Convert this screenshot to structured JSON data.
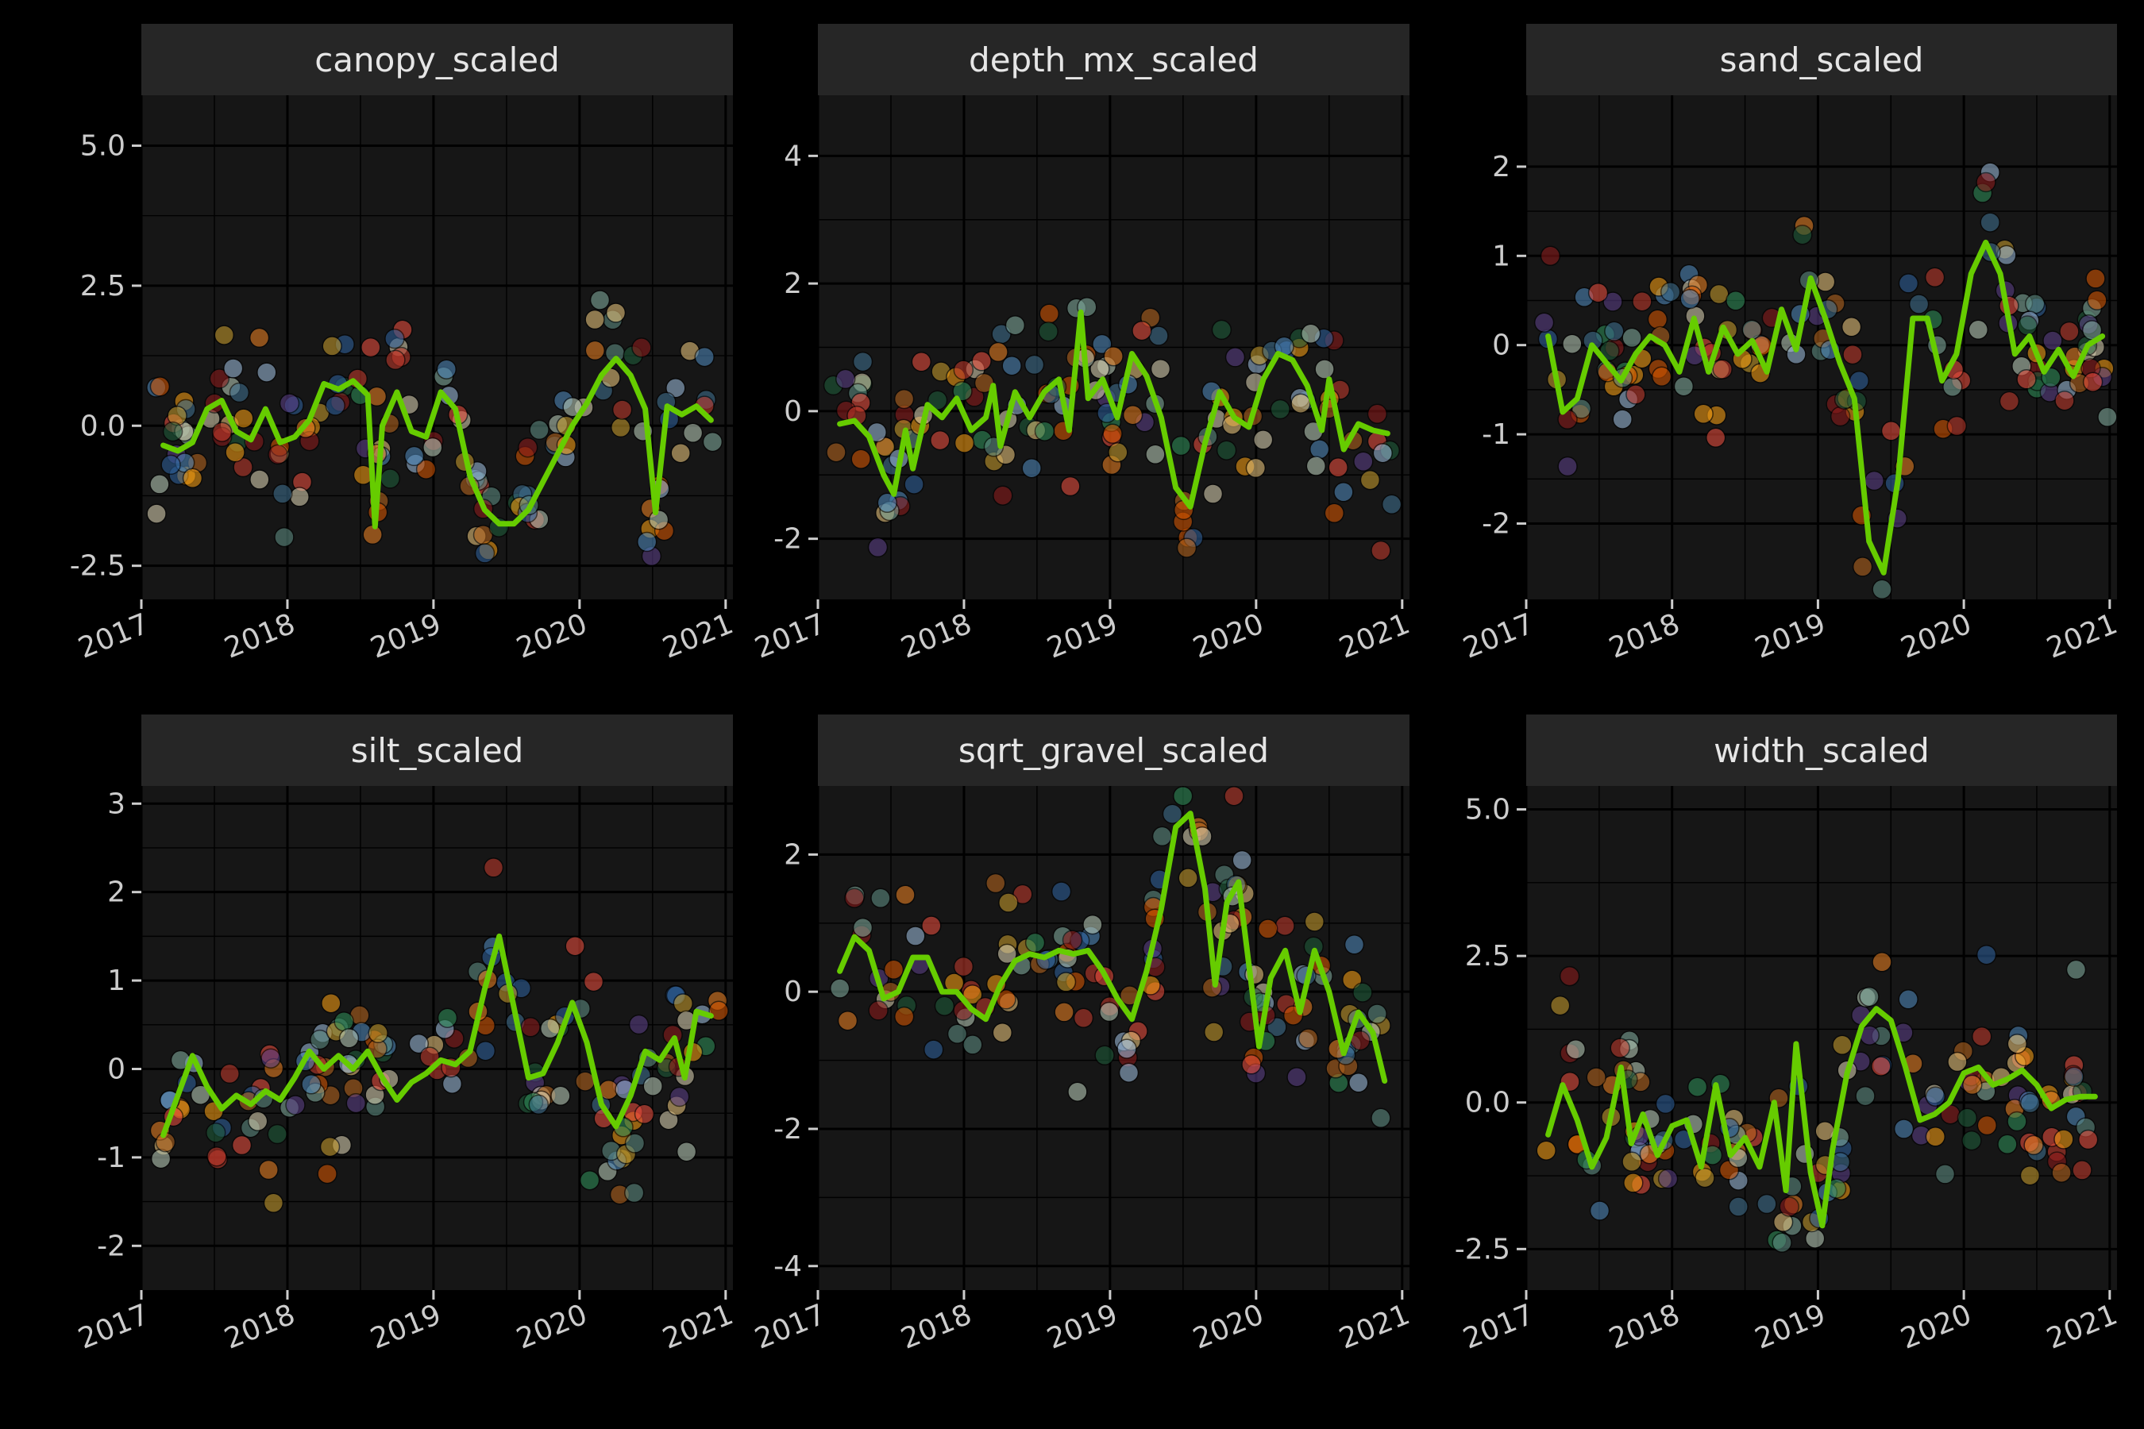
{
  "colors": {
    "background": "#000000",
    "panel": "#161616",
    "strip": "#262626",
    "smooth": "#66cc00",
    "palette": [
      "#8b1a1a",
      "#c0392b",
      "#e74c3c",
      "#d35400",
      "#e67e22",
      "#f39c12",
      "#c49a2c",
      "#e6c27a",
      "#d8cfb0",
      "#b7c9b7",
      "#7fa99b",
      "#5e8c82",
      "#2e8b57",
      "#1e5b3a",
      "#3e6e8e",
      "#4d86b8",
      "#2d5f9a",
      "#9ab8d8",
      "#b5651d",
      "#5a3e85"
    ]
  },
  "chart_data": [
    {
      "type": "scatter",
      "title": "canopy_scaled",
      "x_ticks": [
        "2017",
        "2018",
        "2019",
        "2020",
        "2021"
      ],
      "y_ticks": [
        "-2.5",
        "0.0",
        "2.5",
        "5.0"
      ],
      "xlim": [
        2017.0,
        2021.05
      ],
      "ylim": [
        -3.1,
        5.9
      ],
      "grid": true,
      "smooth": [
        [
          2017.15,
          -0.35
        ],
        [
          2017.25,
          -0.45
        ],
        [
          2017.35,
          -0.3
        ],
        [
          2017.45,
          0.3
        ],
        [
          2017.55,
          0.45
        ],
        [
          2017.65,
          -0.1
        ],
        [
          2017.75,
          -0.25
        ],
        [
          2017.85,
          0.3
        ],
        [
          2017.95,
          -0.3
        ],
        [
          2018.05,
          -0.2
        ],
        [
          2018.15,
          0.1
        ],
        [
          2018.25,
          0.75
        ],
        [
          2018.35,
          0.65
        ],
        [
          2018.45,
          0.8
        ],
        [
          2018.55,
          0.55
        ],
        [
          2018.6,
          -1.8
        ],
        [
          2018.65,
          0.0
        ],
        [
          2018.75,
          0.6
        ],
        [
          2018.85,
          -0.1
        ],
        [
          2018.95,
          -0.2
        ],
        [
          2019.05,
          0.6
        ],
        [
          2019.15,
          0.3
        ],
        [
          2019.25,
          -0.9
        ],
        [
          2019.35,
          -1.5
        ],
        [
          2019.45,
          -1.75
        ],
        [
          2019.55,
          -1.75
        ],
        [
          2019.65,
          -1.5
        ],
        [
          2019.75,
          -1.0
        ],
        [
          2019.85,
          -0.5
        ],
        [
          2019.95,
          0.0
        ],
        [
          2020.05,
          0.4
        ],
        [
          2020.15,
          0.9
        ],
        [
          2020.25,
          1.2
        ],
        [
          2020.35,
          0.9
        ],
        [
          2020.45,
          0.3
        ],
        [
          2020.52,
          -1.55
        ],
        [
          2020.6,
          0.35
        ],
        [
          2020.7,
          0.2
        ],
        [
          2020.8,
          0.35
        ],
        [
          2020.9,
          0.1
        ]
      ]
    },
    {
      "type": "scatter",
      "title": "depth_mx_scaled",
      "x_ticks": [
        "2017",
        "2018",
        "2019",
        "2020",
        "2021"
      ],
      "y_ticks": [
        "-2",
        "0",
        "2",
        "4"
      ],
      "xlim": [
        2017.0,
        2021.05
      ],
      "ylim": [
        -2.95,
        4.95
      ],
      "grid": true,
      "smooth": [
        [
          2017.15,
          -0.2
        ],
        [
          2017.25,
          -0.15
        ],
        [
          2017.35,
          -0.4
        ],
        [
          2017.45,
          -1.0
        ],
        [
          2017.52,
          -1.3
        ],
        [
          2017.6,
          -0.3
        ],
        [
          2017.65,
          -0.9
        ],
        [
          2017.75,
          0.1
        ],
        [
          2017.85,
          -0.1
        ],
        [
          2017.95,
          0.2
        ],
        [
          2018.05,
          -0.3
        ],
        [
          2018.15,
          -0.1
        ],
        [
          2018.2,
          0.4
        ],
        [
          2018.25,
          -0.55
        ],
        [
          2018.35,
          0.3
        ],
        [
          2018.45,
          -0.1
        ],
        [
          2018.55,
          0.3
        ],
        [
          2018.65,
          0.5
        ],
        [
          2018.72,
          -0.3
        ],
        [
          2018.8,
          1.55
        ],
        [
          2018.85,
          0.2
        ],
        [
          2018.95,
          0.5
        ],
        [
          2019.05,
          -0.1
        ],
        [
          2019.15,
          0.9
        ],
        [
          2019.25,
          0.55
        ],
        [
          2019.35,
          -0.1
        ],
        [
          2019.45,
          -1.2
        ],
        [
          2019.55,
          -1.5
        ],
        [
          2019.65,
          -0.5
        ],
        [
          2019.75,
          0.3
        ],
        [
          2019.85,
          -0.1
        ],
        [
          2019.95,
          -0.25
        ],
        [
          2020.05,
          0.5
        ],
        [
          2020.15,
          0.9
        ],
        [
          2020.25,
          0.8
        ],
        [
          2020.35,
          0.4
        ],
        [
          2020.45,
          -0.3
        ],
        [
          2020.5,
          0.5
        ],
        [
          2020.6,
          -0.6
        ],
        [
          2020.7,
          -0.2
        ],
        [
          2020.8,
          -0.3
        ],
        [
          2020.9,
          -0.35
        ]
      ]
    },
    {
      "type": "scatter",
      "title": "sand_scaled",
      "x_ticks": [
        "2017",
        "2018",
        "2019",
        "2020",
        "2021"
      ],
      "y_ticks": [
        "-2",
        "-1",
        "0",
        "1",
        "2"
      ],
      "xlim": [
        2017.0,
        2021.05
      ],
      "ylim": [
        -2.85,
        2.8
      ],
      "grid": true,
      "smooth": [
        [
          2017.15,
          0.1
        ],
        [
          2017.25,
          -0.75
        ],
        [
          2017.35,
          -0.6
        ],
        [
          2017.45,
          0.0
        ],
        [
          2017.55,
          -0.2
        ],
        [
          2017.65,
          -0.4
        ],
        [
          2017.75,
          -0.1
        ],
        [
          2017.85,
          0.1
        ],
        [
          2017.95,
          0.0
        ],
        [
          2018.05,
          -0.3
        ],
        [
          2018.15,
          0.3
        ],
        [
          2018.25,
          -0.3
        ],
        [
          2018.35,
          0.2
        ],
        [
          2018.45,
          -0.1
        ],
        [
          2018.55,
          0.05
        ],
        [
          2018.65,
          -0.3
        ],
        [
          2018.75,
          0.4
        ],
        [
          2018.85,
          -0.05
        ],
        [
          2018.95,
          0.75
        ],
        [
          2019.05,
          0.3
        ],
        [
          2019.15,
          -0.2
        ],
        [
          2019.25,
          -0.6
        ],
        [
          2019.35,
          -2.2
        ],
        [
          2019.45,
          -2.55
        ],
        [
          2019.55,
          -1.5
        ],
        [
          2019.65,
          0.3
        ],
        [
          2019.75,
          0.3
        ],
        [
          2019.85,
          -0.4
        ],
        [
          2019.95,
          -0.1
        ],
        [
          2020.05,
          0.8
        ],
        [
          2020.15,
          1.15
        ],
        [
          2020.25,
          0.8
        ],
        [
          2020.35,
          -0.1
        ],
        [
          2020.45,
          0.1
        ],
        [
          2020.55,
          -0.3
        ],
        [
          2020.65,
          -0.05
        ],
        [
          2020.75,
          -0.35
        ],
        [
          2020.85,
          0.0
        ],
        [
          2020.95,
          0.1
        ]
      ]
    },
    {
      "type": "scatter",
      "title": "silt_scaled",
      "x_ticks": [
        "2017",
        "2018",
        "2019",
        "2020",
        "2021"
      ],
      "y_ticks": [
        "-2",
        "-1",
        "0",
        "1",
        "2",
        "3"
      ],
      "xlim": [
        2017.0,
        2021.05
      ],
      "ylim": [
        -2.5,
        3.2
      ],
      "grid": true,
      "smooth": [
        [
          2017.15,
          -0.75
        ],
        [
          2017.25,
          -0.3
        ],
        [
          2017.35,
          0.15
        ],
        [
          2017.45,
          -0.2
        ],
        [
          2017.55,
          -0.45
        ],
        [
          2017.65,
          -0.3
        ],
        [
          2017.75,
          -0.4
        ],
        [
          2017.85,
          -0.25
        ],
        [
          2017.95,
          -0.35
        ],
        [
          2018.05,
          -0.1
        ],
        [
          2018.15,
          0.2
        ],
        [
          2018.25,
          0.0
        ],
        [
          2018.35,
          0.15
        ],
        [
          2018.45,
          0.0
        ],
        [
          2018.55,
          0.2
        ],
        [
          2018.65,
          -0.1
        ],
        [
          2018.75,
          -0.35
        ],
        [
          2018.85,
          -0.15
        ],
        [
          2018.95,
          -0.05
        ],
        [
          2019.05,
          0.1
        ],
        [
          2019.15,
          0.05
        ],
        [
          2019.25,
          0.2
        ],
        [
          2019.35,
          0.9
        ],
        [
          2019.45,
          1.5
        ],
        [
          2019.55,
          0.7
        ],
        [
          2019.65,
          -0.1
        ],
        [
          2019.75,
          -0.05
        ],
        [
          2019.85,
          0.3
        ],
        [
          2019.95,
          0.75
        ],
        [
          2020.05,
          0.3
        ],
        [
          2020.15,
          -0.4
        ],
        [
          2020.25,
          -0.65
        ],
        [
          2020.35,
          -0.3
        ],
        [
          2020.45,
          0.2
        ],
        [
          2020.55,
          0.1
        ],
        [
          2020.65,
          0.35
        ],
        [
          2020.72,
          -0.1
        ],
        [
          2020.8,
          0.65
        ],
        [
          2020.9,
          0.6
        ]
      ]
    },
    {
      "type": "scatter",
      "title": "sqrt_gravel_scaled",
      "x_ticks": [
        "2017",
        "2018",
        "2019",
        "2020",
        "2021"
      ],
      "y_ticks": [
        "-4",
        "-2",
        "0",
        "2"
      ],
      "xlim": [
        2017.0,
        2021.05
      ],
      "ylim": [
        -4.35,
        3.0
      ],
      "grid": true,
      "smooth": [
        [
          2017.15,
          0.3
        ],
        [
          2017.25,
          0.8
        ],
        [
          2017.35,
          0.6
        ],
        [
          2017.45,
          -0.1
        ],
        [
          2017.55,
          0.0
        ],
        [
          2017.65,
          0.5
        ],
        [
          2017.75,
          0.5
        ],
        [
          2017.85,
          0.0
        ],
        [
          2017.95,
          0.0
        ],
        [
          2018.05,
          -0.25
        ],
        [
          2018.15,
          -0.4
        ],
        [
          2018.25,
          0.1
        ],
        [
          2018.35,
          0.45
        ],
        [
          2018.45,
          0.55
        ],
        [
          2018.55,
          0.5
        ],
        [
          2018.65,
          0.6
        ],
        [
          2018.75,
          0.55
        ],
        [
          2018.85,
          0.6
        ],
        [
          2018.95,
          0.3
        ],
        [
          2019.05,
          -0.1
        ],
        [
          2019.15,
          -0.4
        ],
        [
          2019.25,
          0.3
        ],
        [
          2019.35,
          1.2
        ],
        [
          2019.45,
          2.4
        ],
        [
          2019.55,
          2.6
        ],
        [
          2019.65,
          1.5
        ],
        [
          2019.72,
          0.1
        ],
        [
          2019.8,
          1.3
        ],
        [
          2019.88,
          1.6
        ],
        [
          2019.95,
          0.4
        ],
        [
          2020.02,
          -0.8
        ],
        [
          2020.1,
          0.2
        ],
        [
          2020.2,
          0.6
        ],
        [
          2020.3,
          -0.3
        ],
        [
          2020.4,
          0.6
        ],
        [
          2020.5,
          0.0
        ],
        [
          2020.6,
          -0.9
        ],
        [
          2020.7,
          -0.3
        ],
        [
          2020.8,
          -0.6
        ],
        [
          2020.88,
          -1.3
        ]
      ]
    },
    {
      "type": "scatter",
      "title": "width_scaled",
      "x_ticks": [
        "2017",
        "2018",
        "2019",
        "2020",
        "2021"
      ],
      "y_ticks": [
        "-2.5",
        "0.0",
        "2.5",
        "5.0"
      ],
      "xlim": [
        2017.0,
        2021.05
      ],
      "ylim": [
        -3.2,
        5.4
      ],
      "grid": true,
      "smooth": [
        [
          2017.15,
          -0.55
        ],
        [
          2017.25,
          0.3
        ],
        [
          2017.35,
          -0.3
        ],
        [
          2017.45,
          -1.1
        ],
        [
          2017.55,
          -0.6
        ],
        [
          2017.65,
          0.6
        ],
        [
          2017.72,
          -0.7
        ],
        [
          2017.8,
          -0.2
        ],
        [
          2017.9,
          -0.9
        ],
        [
          2018.0,
          -0.4
        ],
        [
          2018.1,
          -0.3
        ],
        [
          2018.2,
          -1.1
        ],
        [
          2018.3,
          0.3
        ],
        [
          2018.4,
          -0.9
        ],
        [
          2018.5,
          -0.6
        ],
        [
          2018.6,
          -1.1
        ],
        [
          2018.7,
          0.0
        ],
        [
          2018.78,
          -1.5
        ],
        [
          2018.85,
          1.0
        ],
        [
          2018.95,
          -1.2
        ],
        [
          2019.03,
          -2.1
        ],
        [
          2019.1,
          -0.8
        ],
        [
          2019.2,
          0.5
        ],
        [
          2019.3,
          1.3
        ],
        [
          2019.4,
          1.6
        ],
        [
          2019.5,
          1.4
        ],
        [
          2019.6,
          0.6
        ],
        [
          2019.7,
          -0.3
        ],
        [
          2019.8,
          -0.2
        ],
        [
          2019.9,
          0.0
        ],
        [
          2020.0,
          0.5
        ],
        [
          2020.1,
          0.6
        ],
        [
          2020.2,
          0.3
        ],
        [
          2020.3,
          0.4
        ],
        [
          2020.4,
          0.55
        ],
        [
          2020.5,
          0.3
        ],
        [
          2020.6,
          -0.1
        ],
        [
          2020.7,
          0.05
        ],
        [
          2020.8,
          0.1
        ],
        [
          2020.9,
          0.1
        ]
      ]
    }
  ]
}
